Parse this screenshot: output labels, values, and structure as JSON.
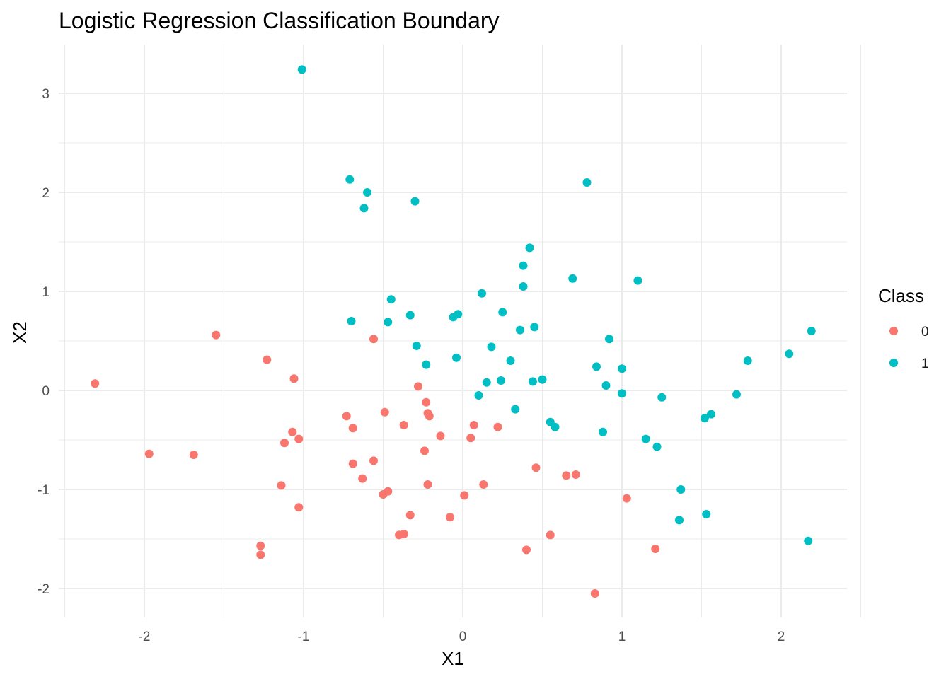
{
  "chart_data": {
    "type": "scatter",
    "title": "Logistic Regression Classification Boundary",
    "xlabel": "X1",
    "ylabel": "X2",
    "xlim": [
      -2.5,
      2.4
    ],
    "ylim": [
      -2.3,
      3.5
    ],
    "x_ticks": [
      -2,
      -1,
      0,
      1,
      2
    ],
    "y_ticks": [
      -2,
      -1,
      0,
      1,
      2,
      3
    ],
    "grid": true,
    "legend": {
      "title": "Class",
      "position": "right"
    },
    "series": [
      {
        "name": "0",
        "color": "#F8766D",
        "points": [
          [
            -2.31,
            0.07
          ],
          [
            -1.97,
            -0.64
          ],
          [
            -1.69,
            -0.65
          ],
          [
            -1.55,
            0.56
          ],
          [
            -1.23,
            0.31
          ],
          [
            -1.27,
            -1.57
          ],
          [
            -1.27,
            -1.66
          ],
          [
            -1.14,
            -0.96
          ],
          [
            -1.12,
            -0.53
          ],
          [
            -1.07,
            -0.42
          ],
          [
            -1.06,
            0.12
          ],
          [
            -1.03,
            -0.49
          ],
          [
            -1.03,
            -1.18
          ],
          [
            -0.73,
            -0.26
          ],
          [
            -0.69,
            -0.38
          ],
          [
            -0.69,
            -0.74
          ],
          [
            -0.63,
            -0.89
          ],
          [
            -0.56,
            0.52
          ],
          [
            -0.56,
            -0.71
          ],
          [
            -0.49,
            -0.22
          ],
          [
            -0.47,
            -1.02
          ],
          [
            -0.5,
            -1.05
          ],
          [
            -0.37,
            -0.35
          ],
          [
            -0.33,
            -1.26
          ],
          [
            -0.37,
            -1.45
          ],
          [
            -0.4,
            -1.46
          ],
          [
            -0.28,
            0.04
          ],
          [
            -0.23,
            -0.12
          ],
          [
            -0.22,
            -0.23
          ],
          [
            -0.21,
            -0.26
          ],
          [
            -0.24,
            -0.61
          ],
          [
            -0.22,
            -0.95
          ],
          [
            -0.14,
            -0.46
          ],
          [
            -0.08,
            -1.28
          ],
          [
            0.01,
            -1.06
          ],
          [
            0.05,
            -0.48
          ],
          [
            0.07,
            -0.35
          ],
          [
            0.13,
            -0.95
          ],
          [
            0.22,
            -0.37
          ],
          [
            0.4,
            -1.61
          ],
          [
            0.46,
            -0.78
          ],
          [
            0.55,
            -1.46
          ],
          [
            0.65,
            -0.86
          ],
          [
            0.71,
            -0.85
          ],
          [
            1.03,
            -1.09
          ],
          [
            0.83,
            -2.05
          ],
          [
            1.21,
            -1.6
          ]
        ]
      },
      {
        "name": "1",
        "color": "#00BFC4",
        "points": [
          [
            -1.01,
            3.24
          ],
          [
            -0.71,
            2.13
          ],
          [
            -0.6,
            2.0
          ],
          [
            -0.62,
            1.84
          ],
          [
            -0.3,
            1.91
          ],
          [
            -0.45,
            0.92
          ],
          [
            -0.7,
            0.7
          ],
          [
            -0.47,
            0.69
          ],
          [
            -0.33,
            0.76
          ],
          [
            -0.29,
            0.45
          ],
          [
            -0.23,
            0.26
          ],
          [
            -0.03,
            0.77
          ],
          [
            -0.06,
            0.74
          ],
          [
            -0.04,
            0.33
          ],
          [
            0.12,
            0.98
          ],
          [
            0.1,
            -0.05
          ],
          [
            0.15,
            0.08
          ],
          [
            0.18,
            0.44
          ],
          [
            0.24,
            0.1
          ],
          [
            0.25,
            0.79
          ],
          [
            0.3,
            0.3
          ],
          [
            0.33,
            -0.19
          ],
          [
            0.36,
            0.61
          ],
          [
            0.38,
            1.05
          ],
          [
            0.38,
            1.26
          ],
          [
            0.42,
            1.44
          ],
          [
            0.44,
            0.09
          ],
          [
            0.45,
            0.64
          ],
          [
            0.5,
            0.11
          ],
          [
            0.55,
            -0.32
          ],
          [
            0.58,
            -0.37
          ],
          [
            0.69,
            1.13
          ],
          [
            0.78,
            2.1
          ],
          [
            0.84,
            0.24
          ],
          [
            0.88,
            -0.42
          ],
          [
            0.9,
            0.05
          ],
          [
            0.92,
            0.52
          ],
          [
            1.0,
            0.22
          ],
          [
            1.0,
            -0.03
          ],
          [
            1.1,
            1.11
          ],
          [
            1.15,
            -0.49
          ],
          [
            1.22,
            -0.57
          ],
          [
            1.25,
            -0.07
          ],
          [
            1.37,
            -1.0
          ],
          [
            1.36,
            -1.31
          ],
          [
            1.52,
            -0.28
          ],
          [
            1.53,
            -1.25
          ],
          [
            1.56,
            -0.24
          ],
          [
            1.72,
            -0.04
          ],
          [
            1.79,
            0.3
          ],
          [
            2.05,
            0.37
          ],
          [
            2.19,
            0.6
          ],
          [
            2.17,
            -1.52
          ]
        ]
      }
    ]
  }
}
